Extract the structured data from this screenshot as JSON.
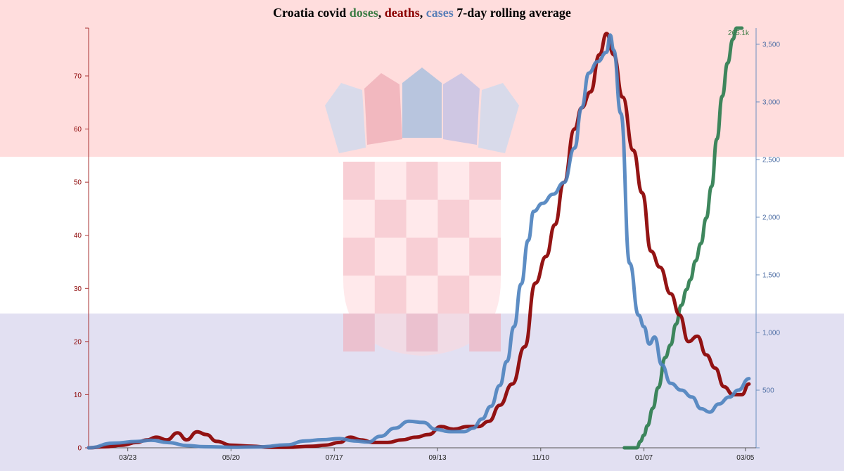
{
  "chart_data": {
    "type": "line",
    "title": {
      "prefix": "Croatia covid",
      "doses": "doses",
      "sep1": ",",
      "deaths": "deaths",
      "sep2": ",",
      "cases": "cases",
      "suffix": "7-day rolling average"
    },
    "background": "Croatian flag (red, white, blue) with coat of arms",
    "grid": false,
    "x_axis": {
      "type": "date",
      "range": [
        "2020-03-01",
        "2021-03-11"
      ],
      "ticks": [
        {
          "date": "2020-03-23",
          "label": "03/23"
        },
        {
          "date": "2020-05-20",
          "label": "05/20"
        },
        {
          "date": "2020-07-17",
          "label": "07/17"
        },
        {
          "date": "2020-09-13",
          "label": "09/13"
        },
        {
          "date": "2020-11-10",
          "label": "11/10"
        },
        {
          "date": "2021-01-07",
          "label": "01/07"
        },
        {
          "date": "2021-03-05",
          "label": "03/05"
        }
      ]
    },
    "left_axis": {
      "series": "deaths",
      "range": [
        0,
        79
      ],
      "ticks": [
        {
          "value": 0,
          "label": "0"
        },
        {
          "value": 10,
          "label": "10"
        },
        {
          "value": 20,
          "label": "20"
        },
        {
          "value": 30,
          "label": "30"
        },
        {
          "value": 40,
          "label": "40"
        },
        {
          "value": 50,
          "label": "50"
        },
        {
          "value": 60,
          "label": "60"
        },
        {
          "value": 70,
          "label": "70"
        }
      ]
    },
    "right_axis": {
      "series": "cases",
      "range": [
        0,
        3640
      ],
      "ticks": [
        {
          "value": 500,
          "label": "500"
        },
        {
          "value": 1000,
          "label": "1,000"
        },
        {
          "value": 1500,
          "label": "1,500"
        },
        {
          "value": 2000,
          "label": "2,000"
        },
        {
          "value": 2500,
          "label": "2,500"
        },
        {
          "value": 3000,
          "label": "3,000"
        },
        {
          "value": 3500,
          "label": "3,500"
        }
      ]
    },
    "doses_axis": {
      "range": [
        0,
        265000
      ],
      "ticks": [
        {
          "value": 265000,
          "label": "265.1k"
        }
      ]
    },
    "series": [
      {
        "name": "doses",
        "color": "#2e7d4f",
        "axis": "doses",
        "points": [
          [
            "2020-12-27",
            0
          ],
          [
            "2021-01-03",
            0
          ],
          [
            "2021-01-05",
            4000
          ],
          [
            "2021-01-07",
            8000
          ],
          [
            "2021-01-09",
            14000
          ],
          [
            "2021-01-12",
            25000
          ],
          [
            "2021-01-15",
            38000
          ],
          [
            "2021-01-19",
            57000
          ],
          [
            "2021-01-22",
            65000
          ],
          [
            "2021-01-25",
            78000
          ],
          [
            "2021-01-28",
            90000
          ],
          [
            "2021-01-31",
            100000
          ],
          [
            "2021-02-02",
            106000
          ],
          [
            "2021-02-05",
            118000
          ],
          [
            "2021-02-08",
            129000
          ],
          [
            "2021-02-11",
            145000
          ],
          [
            "2021-02-14",
            165000
          ],
          [
            "2021-02-17",
            195000
          ],
          [
            "2021-02-20",
            222000
          ],
          [
            "2021-02-23",
            243000
          ],
          [
            "2021-02-26",
            258000
          ],
          [
            "2021-02-28",
            265000
          ],
          [
            "2021-03-03",
            265000
          ]
        ]
      },
      {
        "name": "deaths",
        "color": "#8b0000",
        "axis": "left",
        "points": [
          [
            "2020-03-01",
            0
          ],
          [
            "2020-03-10",
            0.2
          ],
          [
            "2020-03-20",
            0.5
          ],
          [
            "2020-03-28",
            1.0
          ],
          [
            "2020-04-03",
            1.5
          ],
          [
            "2020-04-08",
            2.0
          ],
          [
            "2020-04-14",
            1.5
          ],
          [
            "2020-04-20",
            2.8
          ],
          [
            "2020-04-25",
            1.5
          ],
          [
            "2020-05-01",
            3.0
          ],
          [
            "2020-05-06",
            2.5
          ],
          [
            "2020-05-12",
            1.2
          ],
          [
            "2020-05-20",
            0.5
          ],
          [
            "2020-06-01",
            0.3
          ],
          [
            "2020-06-10",
            0.1
          ],
          [
            "2020-06-20",
            0.1
          ],
          [
            "2020-07-05",
            0.3
          ],
          [
            "2020-07-12",
            0.5
          ],
          [
            "2020-07-20",
            1.0
          ],
          [
            "2020-07-26",
            2.0
          ],
          [
            "2020-08-01",
            1.5
          ],
          [
            "2020-08-08",
            1.0
          ],
          [
            "2020-08-16",
            1.0
          ],
          [
            "2020-08-24",
            1.5
          ],
          [
            "2020-09-01",
            2.0
          ],
          [
            "2020-09-08",
            2.5
          ],
          [
            "2020-09-15",
            4.0
          ],
          [
            "2020-09-22",
            3.5
          ],
          [
            "2020-09-30",
            4.0
          ],
          [
            "2020-10-06",
            4.0
          ],
          [
            "2020-10-12",
            5.0
          ],
          [
            "2020-10-18",
            8.0
          ],
          [
            "2020-10-25",
            12.0
          ],
          [
            "2020-11-01",
            19.0
          ],
          [
            "2020-11-07",
            31.0
          ],
          [
            "2020-11-13",
            36.0
          ],
          [
            "2020-11-18",
            42.0
          ],
          [
            "2020-11-23",
            50.0
          ],
          [
            "2020-11-29",
            60.0
          ],
          [
            "2020-12-03",
            64.0
          ],
          [
            "2020-12-08",
            67.0
          ],
          [
            "2020-12-13",
            74.0
          ],
          [
            "2020-12-17",
            78.0
          ],
          [
            "2020-12-21",
            74.0
          ],
          [
            "2020-12-26",
            66.0
          ],
          [
            "2021-01-01",
            56.0
          ],
          [
            "2021-01-06",
            48.0
          ],
          [
            "2021-01-11",
            37.0
          ],
          [
            "2021-01-16",
            34.0
          ],
          [
            "2021-01-22",
            29.0
          ],
          [
            "2021-01-27",
            25.0
          ],
          [
            "2021-02-01",
            20.0
          ],
          [
            "2021-02-06",
            21.0
          ],
          [
            "2021-02-11",
            17.5
          ],
          [
            "2021-02-16",
            15.0
          ],
          [
            "2021-02-21",
            11.5
          ],
          [
            "2021-02-26",
            10.0
          ],
          [
            "2021-03-03",
            10.0
          ],
          [
            "2021-03-07",
            12.0
          ]
        ]
      },
      {
        "name": "cases",
        "color": "#4f83bf",
        "axis": "right",
        "points": [
          [
            "2020-03-01",
            0
          ],
          [
            "2020-03-15",
            40
          ],
          [
            "2020-03-28",
            55
          ],
          [
            "2020-04-05",
            65
          ],
          [
            "2020-04-15",
            45
          ],
          [
            "2020-04-25",
            20
          ],
          [
            "2020-05-05",
            10
          ],
          [
            "2020-05-20",
            5
          ],
          [
            "2020-06-05",
            8
          ],
          [
            "2020-06-20",
            25
          ],
          [
            "2020-07-01",
            60
          ],
          [
            "2020-07-10",
            70
          ],
          [
            "2020-07-20",
            80
          ],
          [
            "2020-07-28",
            60
          ],
          [
            "2020-08-05",
            50
          ],
          [
            "2020-08-12",
            100
          ],
          [
            "2020-08-20",
            170
          ],
          [
            "2020-08-28",
            230
          ],
          [
            "2020-09-05",
            220
          ],
          [
            "2020-09-12",
            160
          ],
          [
            "2020-09-20",
            140
          ],
          [
            "2020-09-28",
            140
          ],
          [
            "2020-10-03",
            170
          ],
          [
            "2020-10-08",
            250
          ],
          [
            "2020-10-13",
            360
          ],
          [
            "2020-10-18",
            540
          ],
          [
            "2020-10-22",
            750
          ],
          [
            "2020-10-26",
            1050
          ],
          [
            "2020-10-30",
            1420
          ],
          [
            "2020-11-03",
            1800
          ],
          [
            "2020-11-06",
            2050
          ],
          [
            "2020-11-11",
            2120
          ],
          [
            "2020-11-17",
            2200
          ],
          [
            "2020-11-23",
            2300
          ],
          [
            "2020-11-29",
            2600
          ],
          [
            "2020-12-03",
            2950
          ],
          [
            "2020-12-07",
            3250
          ],
          [
            "2020-12-12",
            3350
          ],
          [
            "2020-12-17",
            3430
          ],
          [
            "2020-12-19",
            3580
          ],
          [
            "2020-12-21",
            3450
          ],
          [
            "2020-12-25",
            2900
          ],
          [
            "2020-12-30",
            1600
          ],
          [
            "2021-01-04",
            1150
          ],
          [
            "2021-01-07",
            1050
          ],
          [
            "2021-01-10",
            900
          ],
          [
            "2021-01-13",
            960
          ],
          [
            "2021-01-17",
            720
          ],
          [
            "2021-01-22",
            560
          ],
          [
            "2021-01-28",
            500
          ],
          [
            "2021-02-03",
            440
          ],
          [
            "2021-02-08",
            340
          ],
          [
            "2021-02-13",
            310
          ],
          [
            "2021-02-18",
            380
          ],
          [
            "2021-02-24",
            440
          ],
          [
            "2021-03-01",
            500
          ],
          [
            "2021-03-07",
            600
          ]
        ]
      }
    ]
  }
}
